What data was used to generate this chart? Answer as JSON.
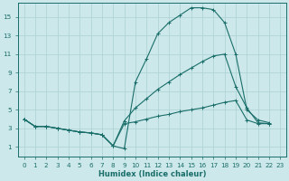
{
  "bg_color": "#cce8ea",
  "grid_color": "#b0d4d6",
  "line_color": "#1a6e6a",
  "xlabel": "Humidex (Indice chaleur)",
  "xlim": [
    -0.5,
    23.5
  ],
  "ylim": [
    0,
    16.5
  ],
  "xticks": [
    0,
    1,
    2,
    3,
    4,
    5,
    6,
    7,
    8,
    9,
    10,
    11,
    12,
    13,
    14,
    15,
    16,
    17,
    18,
    19,
    20,
    21,
    22,
    23
  ],
  "yticks": [
    1,
    3,
    5,
    7,
    9,
    11,
    13,
    15
  ],
  "series1_x": [
    0,
    1,
    2,
    3,
    4,
    5,
    6,
    7,
    8,
    9,
    10,
    11,
    12,
    13,
    14,
    15,
    16,
    17,
    18,
    19,
    20,
    21,
    22
  ],
  "series1_y": [
    4.0,
    3.2,
    3.2,
    3.0,
    2.8,
    2.6,
    2.5,
    2.3,
    1.1,
    0.8,
    8.0,
    10.5,
    13.2,
    14.4,
    15.2,
    16.0,
    16.0,
    15.8,
    14.4,
    11.0,
    5.0,
    3.9,
    3.6
  ],
  "series2_x": [
    0,
    1,
    2,
    3,
    4,
    5,
    6,
    7,
    8,
    9,
    10,
    11,
    12,
    13,
    14,
    15,
    16,
    17,
    18,
    19,
    20,
    21,
    22
  ],
  "series2_y": [
    4.0,
    3.2,
    3.2,
    3.0,
    2.8,
    2.6,
    2.5,
    2.3,
    1.1,
    3.8,
    5.2,
    6.2,
    7.2,
    8.0,
    8.8,
    9.5,
    10.2,
    10.8,
    11.0,
    7.5,
    5.2,
    3.6,
    3.5
  ],
  "series3_x": [
    0,
    1,
    2,
    3,
    4,
    5,
    6,
    7,
    8,
    9,
    10,
    11,
    12,
    13,
    14,
    15,
    16,
    17,
    18,
    19,
    20,
    21,
    22
  ],
  "series3_y": [
    4.0,
    3.2,
    3.2,
    3.0,
    2.8,
    2.6,
    2.5,
    2.3,
    1.1,
    3.5,
    3.7,
    4.0,
    4.3,
    4.5,
    4.8,
    5.0,
    5.2,
    5.5,
    5.8,
    6.0,
    3.9,
    3.5,
    3.5
  ]
}
